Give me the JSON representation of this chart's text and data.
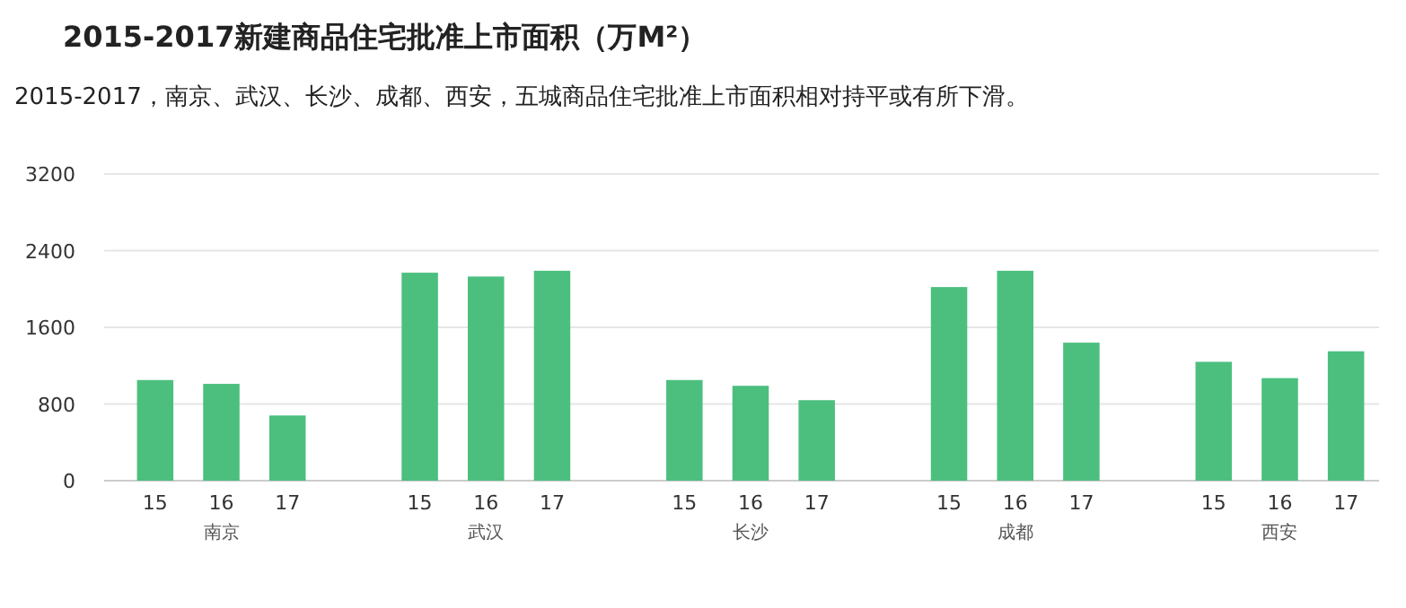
{
  "chart_data": {
    "type": "bar",
    "title": "2015-2017新建商品住宅批准上市面积（万M²）",
    "subtitle": "2015-2017，南京、武汉、长沙、成都、西安，五城商品住宅批准上市面积相对持平或有所下滑。",
    "categories": [
      "15",
      "16",
      "17",
      null,
      "15",
      "16",
      "17",
      null,
      "15",
      "16",
      "17",
      null,
      "15",
      "16",
      "17",
      null,
      "15",
      "16",
      "17"
    ],
    "values": [
      1050,
      1010,
      680,
      null,
      2170,
      2130,
      2190,
      null,
      1050,
      990,
      840,
      null,
      2020,
      2190,
      1440,
      null,
      1240,
      1070,
      1350
    ],
    "color": "#4cbf7f",
    "ylim": [
      0,
      3200
    ],
    "yticks": [
      0,
      800,
      1600,
      2400,
      3200
    ],
    "grid": "y",
    "annotations": [
      "南京",
      "武汉",
      "长沙",
      "成都",
      "西安"
    ]
  }
}
